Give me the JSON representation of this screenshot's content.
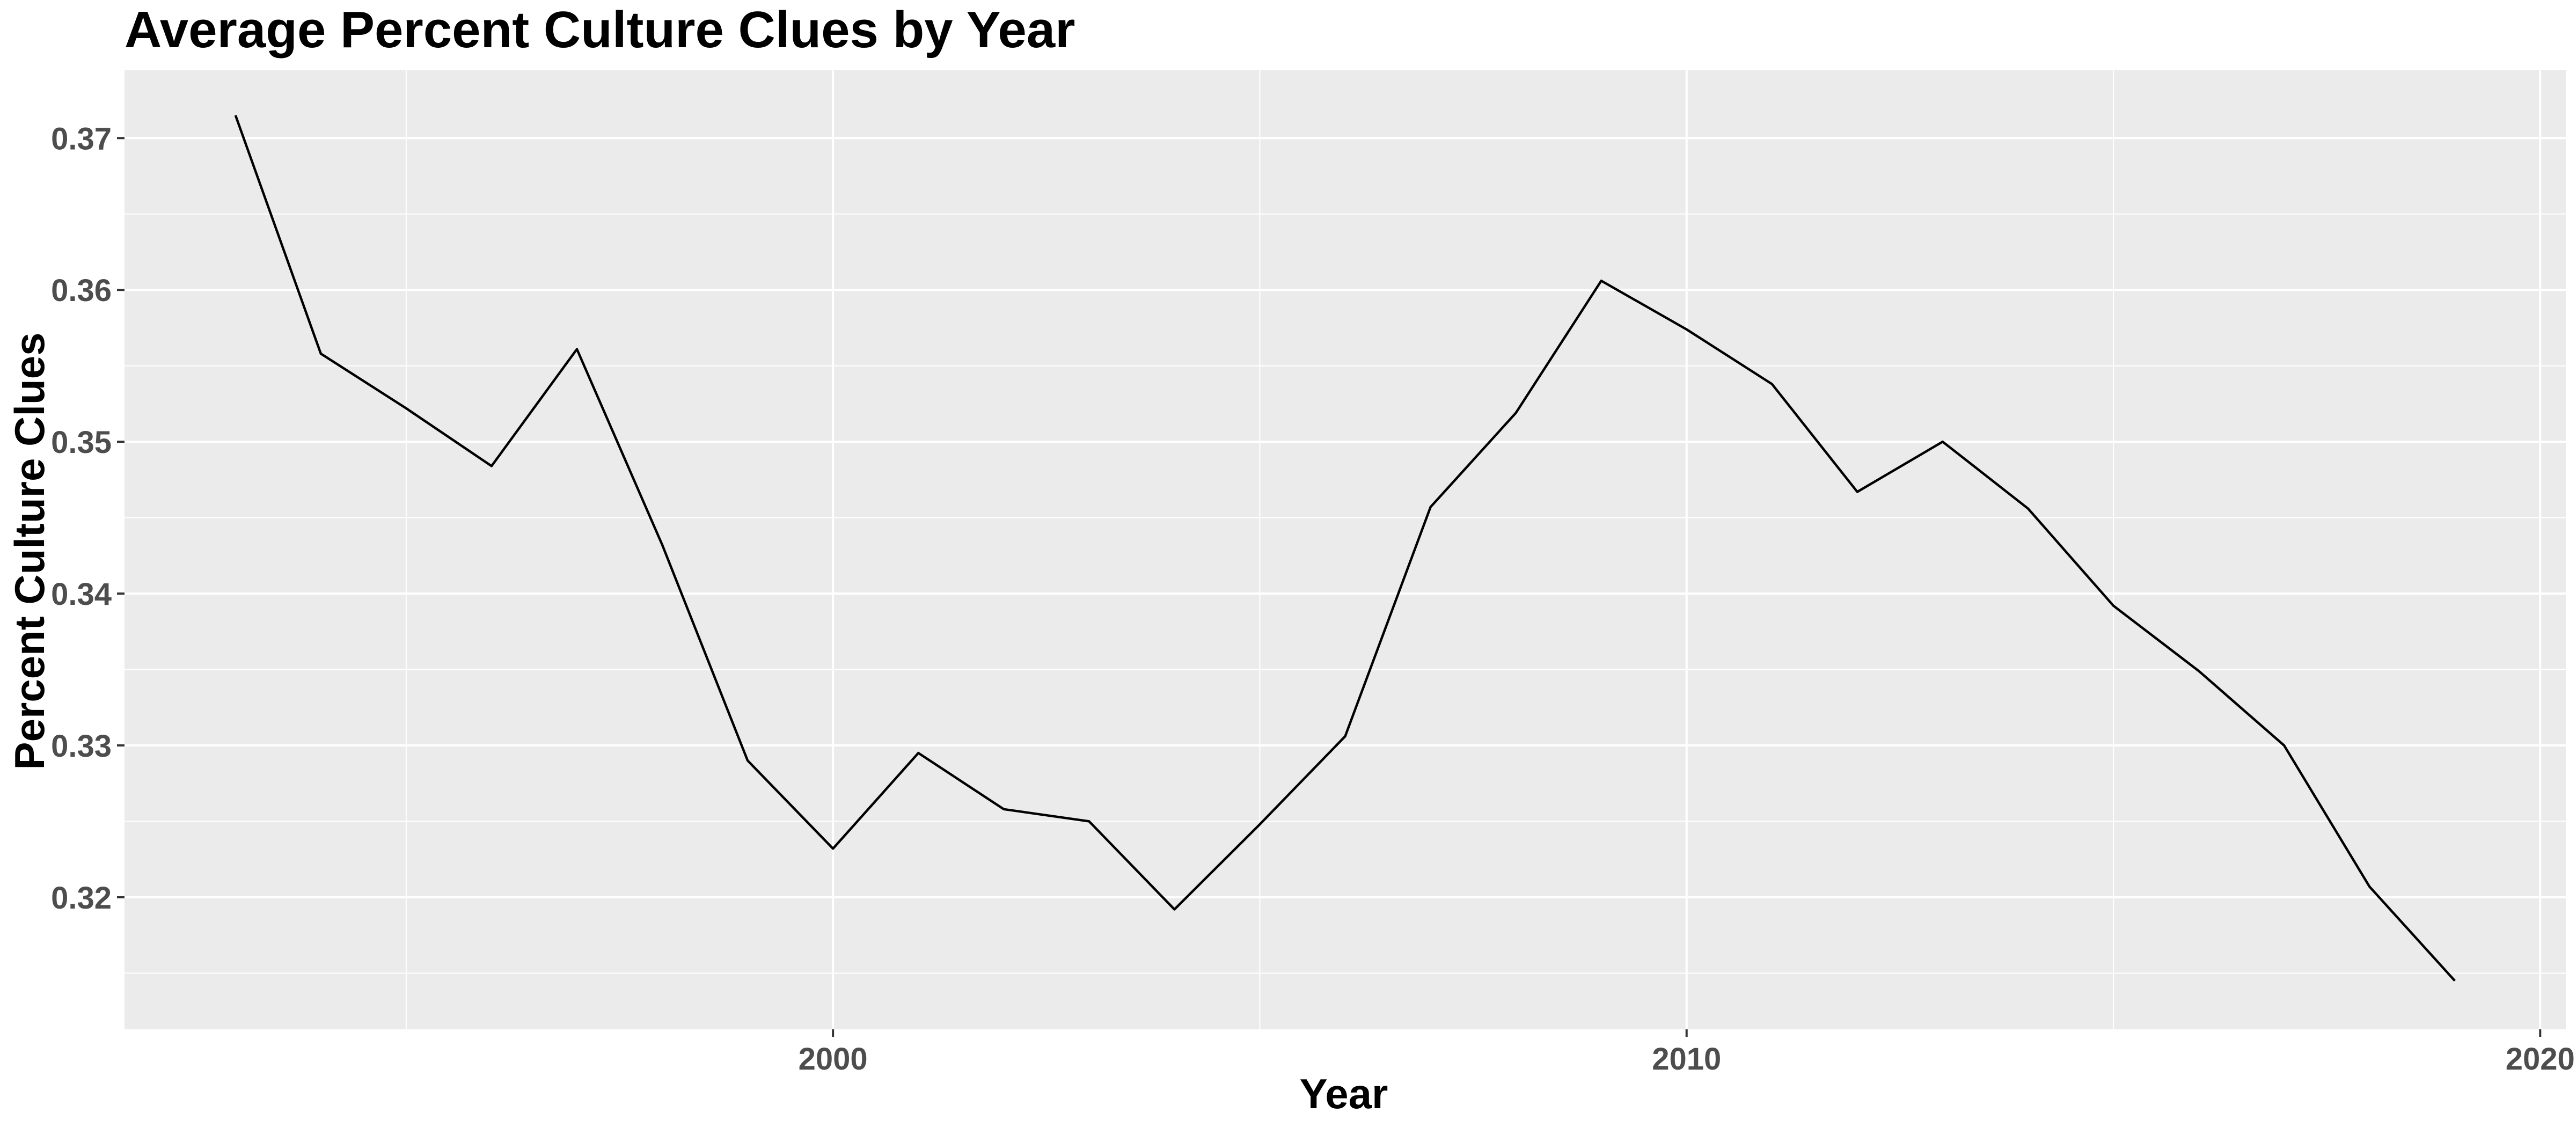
{
  "chart_data": {
    "type": "line",
    "title": "Average Percent Culture Clues by Year",
    "xlabel": "Year",
    "ylabel": "Percent Culture Clues",
    "xlim": [
      1991.7,
      2020.3
    ],
    "ylim": [
      0.3113,
      0.3745
    ],
    "x_ticks": [
      2000,
      2010,
      2020
    ],
    "x_tick_labels": [
      "2000",
      "2010",
      "2020"
    ],
    "y_ticks": [
      0.32,
      0.33,
      0.34,
      0.35,
      0.36,
      0.37
    ],
    "y_tick_labels": [
      "0.32",
      "0.33",
      "0.34",
      "0.35",
      "0.36",
      "0.37"
    ],
    "grid": true,
    "legend": "none",
    "line_color": "#000000",
    "panel_color": "#ebebeb",
    "series": [
      {
        "x": [
          1993,
          1994,
          1995,
          1996,
          1997,
          1998,
          1999,
          2000,
          2001,
          2002,
          2003,
          2004,
          2005,
          2006,
          2007,
          2008,
          2009,
          2010,
          2011,
          2012,
          2013,
          2014,
          2015,
          2016,
          2017,
          2018,
          2019
        ],
        "values": [
          0.3715,
          0.3558,
          0.3522,
          0.3484,
          0.3561,
          0.3432,
          0.329,
          0.3232,
          0.3295,
          0.3258,
          0.325,
          0.3192,
          0.3248,
          0.3306,
          0.3457,
          0.3519,
          0.3606,
          0.3574,
          0.3538,
          0.3467,
          0.35,
          0.3456,
          0.3392,
          0.3349,
          0.33,
          0.3207,
          0.3145
        ]
      }
    ]
  }
}
